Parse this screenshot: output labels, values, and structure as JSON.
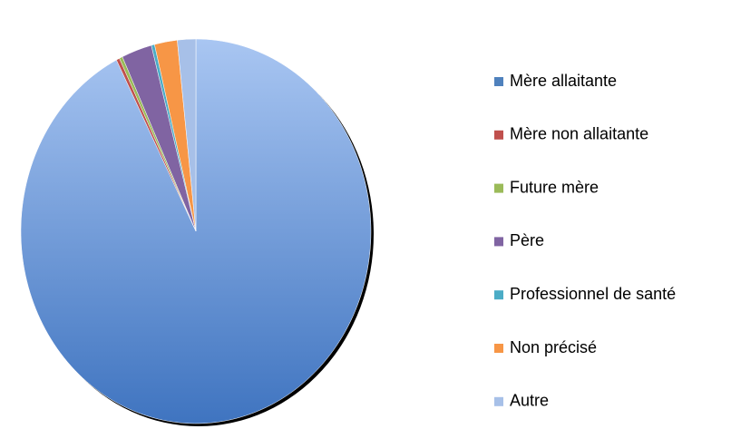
{
  "chart_data": {
    "type": "pie",
    "categories": [
      "Mère allaitante",
      "Mère non allaitante",
      "Future mère",
      "Père",
      "Professionnel de santé",
      "Non précisé",
      "Autre"
    ],
    "values": [
      92.5,
      0.3,
      0.3,
      2.8,
      0.3,
      2.1,
      1.7
    ],
    "colors": [
      "#4f81bd",
      "#c0504d",
      "#9bbb59",
      "#8064a2",
      "#4bacc6",
      "#f79646",
      "#a7c0e8"
    ],
    "legend": "right"
  }
}
